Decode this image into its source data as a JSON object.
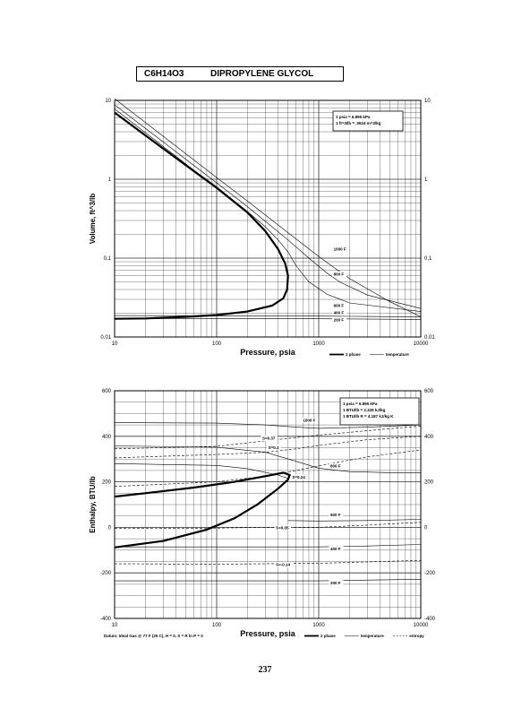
{
  "header": {
    "formula": "C6H14O3",
    "name": "DIPROPYLENE GLYCOL"
  },
  "page_number": "237",
  "chart_data": [
    {
      "type": "line",
      "xscale": "log",
      "yscale": "log",
      "xlim": [
        10,
        10000
      ],
      "ylim": [
        0.01,
        10
      ],
      "xlabel": "Pressure,  psia",
      "ylabel": "Volume, ft^3/lb",
      "xticks": [
        "10",
        "100",
        "1000",
        "10000"
      ],
      "yticks": [
        "0.01",
        "0.1",
        "1",
        "10"
      ],
      "conversion_note": [
        "1 psia = 6.895 kPa",
        "1 ft^3/lb = .0624 m^3/kg"
      ],
      "legend": [
        "2 phase",
        "temperature"
      ],
      "series": [
        {
          "kind": "2 phase",
          "points": [
            [
              10,
              7.0
            ],
            [
              20,
              3.6
            ],
            [
              50,
              1.5
            ],
            [
              100,
              0.78
            ],
            [
              200,
              0.38
            ],
            [
              300,
              0.22
            ],
            [
              400,
              0.13
            ],
            [
              470,
              0.085
            ],
            [
              500,
              0.06
            ],
            [
              490,
              0.04
            ],
            [
              450,
              0.031
            ],
            [
              350,
              0.025
            ],
            [
              200,
              0.021
            ],
            [
              100,
              0.019
            ],
            [
              50,
              0.018
            ],
            [
              20,
              0.0172
            ],
            [
              10,
              0.017
            ]
          ]
        },
        {
          "name": "1000 F",
          "kind": "temperature",
          "points": [
            [
              10,
              10.5
            ],
            [
              100,
              1.05
            ],
            [
              200,
              0.53
            ],
            [
              500,
              0.21
            ],
            [
              1000,
              0.105
            ],
            [
              2000,
              0.055
            ],
            [
              5000,
              0.028
            ],
            [
              10000,
              0.018
            ]
          ]
        },
        {
          "name": "800 F",
          "kind": "temperature",
          "points": [
            [
              10,
              8.8
            ],
            [
              100,
              0.9
            ],
            [
              200,
              0.45
            ],
            [
              500,
              0.17
            ],
            [
              800,
              0.1
            ],
            [
              1200,
              0.065
            ],
            [
              1600,
              0.05
            ],
            [
              3000,
              0.034
            ],
            [
              10000,
              0.023
            ]
          ]
        },
        {
          "name": "600 F",
          "kind": "temperature",
          "points": [
            [
              10,
              7.8
            ],
            [
              60,
              1.3
            ],
            [
              100,
              0.8
            ],
            [
              200,
              0.39
            ],
            [
              300,
              0.25
            ],
            [
              400,
              0.17
            ],
            [
              500,
              0.12
            ],
            [
              600,
              0.08
            ],
            [
              800,
              0.05
            ],
            [
              1200,
              0.035
            ],
            [
              2000,
              0.027
            ],
            [
              10000,
              0.021
            ]
          ]
        },
        {
          "name": "400 F",
          "kind": "temperature",
          "points": [
            [
              10,
              0.0187
            ],
            [
              1000,
              0.0184
            ],
            [
              3000,
              0.0182
            ],
            [
              10000,
              0.0179
            ]
          ]
        },
        {
          "name": "200 F",
          "kind": "temperature",
          "points": [
            [
              10,
              0.0172
            ],
            [
              1000,
              0.017
            ],
            [
              10000,
              0.0167
            ]
          ]
        }
      ],
      "curve_labels": [
        {
          "text": "1000 F",
          "x": 1400,
          "y": 0.125
        },
        {
          "text": "800 F",
          "x": 1400,
          "y": 0.06
        },
        {
          "text": "600 F",
          "x": 1400,
          "y": 0.024
        },
        {
          "text": "400 F",
          "x": 1400,
          "y": 0.0195
        },
        {
          "text": "200 F",
          "x": 1400,
          "y": 0.0158
        }
      ]
    },
    {
      "type": "line",
      "xscale": "log",
      "yscale": "linear",
      "xlim": [
        10,
        10000
      ],
      "ylim": [
        -400,
        600
      ],
      "xlabel": "Pressure,  psia",
      "ylabel": "Enthalpy, BTU/lb",
      "xticks": [
        "10",
        "100",
        "1000",
        "10000"
      ],
      "yticks": [
        "-400",
        "-200",
        "0",
        "200",
        "400",
        "600"
      ],
      "conversion_note": [
        "1 psia = 6.895 kPa",
        "1 BTU/lb = 2.326 kJ/kg",
        "1 BTU/lb R = 4.187 kJ/kg K"
      ],
      "datum_note": "Datum: Ideal Gas @ 77 F (25 C),  H = 0,  S = R ln P = 0",
      "legend": [
        "2 phase",
        "temperature",
        "entropy"
      ],
      "series": [
        {
          "kind": "2 phase",
          "points": [
            [
              10,
              -88
            ],
            [
              30,
              -60
            ],
            [
              80,
              -10
            ],
            [
              150,
              40
            ],
            [
              250,
              100
            ],
            [
              400,
              170
            ],
            [
              500,
              210
            ],
            [
              520,
              230
            ],
            [
              450,
              240
            ],
            [
              300,
              225
            ],
            [
              150,
              200
            ],
            [
              60,
              175
            ],
            [
              20,
              150
            ],
            [
              10,
              135
            ]
          ]
        },
        {
          "name": "1000 F",
          "kind": "temperature",
          "points": [
            [
              10,
              460
            ],
            [
              100,
              458
            ],
            [
              300,
              450
            ],
            [
              600,
              440
            ],
            [
              1000,
              435
            ],
            [
              3000,
              440
            ],
            [
              10000,
              450
            ]
          ]
        },
        {
          "name": "800 F",
          "kind": "temperature",
          "points": [
            [
              10,
              358
            ],
            [
              100,
              352
            ],
            [
              300,
              330
            ],
            [
              600,
              290
            ],
            [
              1000,
              260
            ],
            [
              2000,
              245
            ],
            [
              5000,
              240
            ],
            [
              10000,
              240
            ]
          ]
        },
        {
          "name": "600 F",
          "kind": "temperature",
          "points": [
            [
              10,
              280
            ],
            [
              100,
              272
            ],
            [
              200,
              258
            ],
            [
              400,
              230
            ],
            [
              500,
              215
            ]
          ]
        },
        {
          "name": "600 F",
          "kind": "temperature",
          "points": [
            [
              500,
              30
            ],
            [
              1000,
              28
            ],
            [
              3000,
              30
            ],
            [
              10000,
              35
            ]
          ]
        },
        {
          "name": "400 F",
          "kind": "temperature",
          "points": [
            [
              10,
              -86
            ],
            [
              1000,
              -86
            ],
            [
              3000,
              -82
            ],
            [
              10000,
              -75
            ]
          ]
        },
        {
          "name": "200 F",
          "kind": "temperature",
          "points": [
            [
              10,
              -235
            ],
            [
              1000,
              -235
            ],
            [
              10000,
              -228
            ]
          ]
        },
        {
          "name": "S=0.37",
          "kind": "entropy",
          "points": [
            [
              10,
              345
            ],
            [
              100,
              356
            ],
            [
              300,
              380
            ],
            [
              1000,
              405
            ],
            [
              3000,
              425
            ],
            [
              10000,
              445
            ]
          ]
        },
        {
          "name": "S=0.3",
          "kind": "entropy",
          "points": [
            [
              10,
              305
            ],
            [
              100,
              320
            ],
            [
              300,
              330
            ],
            [
              600,
              345
            ],
            [
              1000,
              360
            ],
            [
              3000,
              385
            ],
            [
              10000,
              400
            ]
          ]
        },
        {
          "name": "S=0.24",
          "kind": "entropy",
          "points": [
            [
              10,
              180
            ],
            [
              100,
              200
            ],
            [
              300,
              225
            ],
            [
              600,
              250
            ],
            [
              1000,
              270
            ],
            [
              3000,
              310
            ],
            [
              10000,
              340
            ]
          ]
        },
        {
          "name": "S=0.05",
          "kind": "entropy",
          "points": [
            [
              10,
              -5
            ],
            [
              100,
              -3
            ],
            [
              300,
              0
            ],
            [
              1000,
              0
            ],
            [
              3000,
              10
            ],
            [
              10000,
              22
            ]
          ]
        },
        {
          "name": "S=-0.14",
          "kind": "entropy",
          "points": [
            [
              10,
              -160
            ],
            [
              100,
              -162
            ],
            [
              300,
              -160
            ],
            [
              1000,
              -158
            ],
            [
              3000,
              -152
            ],
            [
              10000,
              -145
            ]
          ]
        }
      ],
      "curve_labels": [
        {
          "text": "1000 F",
          "x": 700,
          "y": 465
        },
        {
          "text": "S=0.37",
          "x": 280,
          "y": 385
        },
        {
          "text": "S=0.3",
          "x": 320,
          "y": 345
        },
        {
          "text": "800 F",
          "x": 1300,
          "y": 264
        },
        {
          "text": "S=0.24",
          "x": 550,
          "y": 215
        },
        {
          "text": "600 F",
          "x": 1300,
          "y": 48
        },
        {
          "text": "S=0.05",
          "x": 380,
          "y": -8
        },
        {
          "text": "400 F",
          "x": 1300,
          "y": -100
        },
        {
          "text": "S=-0.14",
          "x": 380,
          "y": -170
        },
        {
          "text": "200 F",
          "x": 1300,
          "y": -250
        }
      ]
    }
  ]
}
